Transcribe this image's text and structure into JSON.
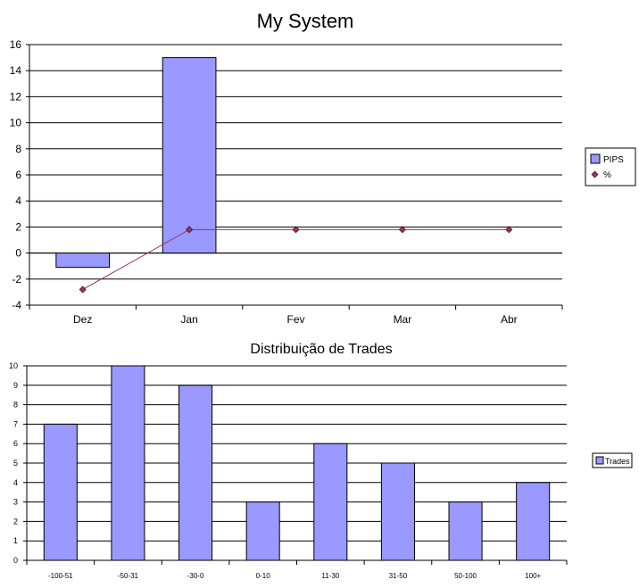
{
  "chart_data": [
    {
      "type": "bar",
      "title": "My System",
      "categories": [
        "Dez",
        "Jan",
        "Fev",
        "Mar",
        "Abr"
      ],
      "series": [
        {
          "name": "PIPS",
          "type": "bar",
          "values": [
            -1.1,
            15,
            null,
            null,
            null
          ],
          "color": "#9999ff"
        },
        {
          "name": "%",
          "type": "line",
          "values": [
            -2.8,
            1.8,
            1.8,
            1.8,
            1.8
          ],
          "color": "#993366"
        }
      ],
      "yticks": [
        "16",
        "14",
        "12",
        "10",
        "8",
        "6",
        "4",
        "2",
        "0",
        "-2",
        "-4"
      ],
      "ylim": [
        -4,
        16
      ],
      "grid": true,
      "legend": "right"
    },
    {
      "type": "bar",
      "title": "Distribuição de Trades",
      "categories": [
        "-100-51",
        "-50-31",
        "-30-0",
        "0-10",
        "11-30",
        "31-50",
        "50-100",
        "100+"
      ],
      "series": [
        {
          "name": "Trades",
          "values": [
            7,
            10,
            9,
            3,
            6,
            5,
            3,
            4
          ],
          "color": "#9999ff"
        }
      ],
      "yticks": [
        "10",
        "9",
        "8",
        "7",
        "6",
        "5",
        "4",
        "3",
        "2",
        "1",
        "0"
      ],
      "ylim": [
        0,
        10
      ],
      "grid": true,
      "legend": "right"
    }
  ]
}
